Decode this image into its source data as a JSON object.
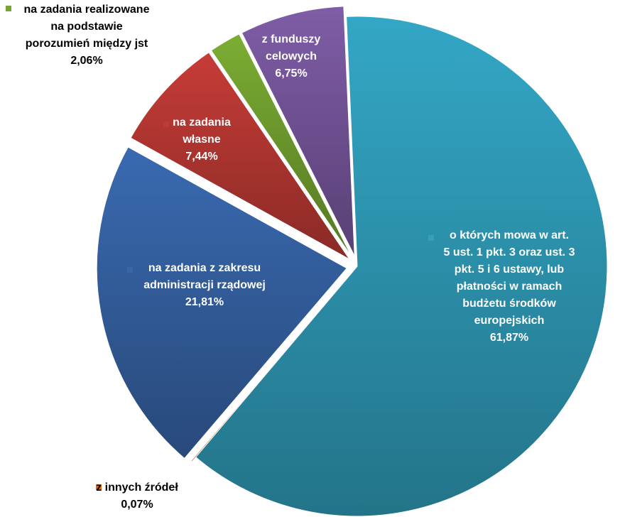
{
  "chart_data": {
    "type": "pie",
    "title": "",
    "slices": [
      {
        "name": "o których mowa w art. 5 ust. 1 pkt. 3 oraz ust. 3 pkt. 5 i 6 ustawy, lub płatności w ramach budżetu środków europejskich",
        "label_lines": [
          "o których mowa w art.",
          "5 ust. 1 pkt. 3 oraz ust. 3",
          "pkt. 5 i 6 ustawy, lub",
          "płatności w ramach",
          "budżetu środków",
          "europejskich"
        ],
        "value": 61.87,
        "value_label": "61,87%",
        "color": "#31A1BE"
      },
      {
        "name": "z innych źródeł",
        "label_lines": [
          "z innych źródeł"
        ],
        "value": 0.07,
        "value_label": "0,07%",
        "color": "#E36C0A"
      },
      {
        "name": "na zadania z zakresu administracji rządowej",
        "label_lines": [
          "na zadania z zakresu",
          "administracji rządowej"
        ],
        "value": 21.81,
        "value_label": "21,81%",
        "color": "#3766A9"
      },
      {
        "name": "na zadania własne",
        "label_lines": [
          "na zadania",
          "własne"
        ],
        "value": 7.44,
        "value_label": "7,44%",
        "color": "#BF3A35"
      },
      {
        "name": "na zadania realizowane na podstawie porozumień między jst",
        "label_lines": [
          "na zadania realizowane",
          "na podstawie",
          "porozumień  między jst"
        ],
        "value": 2.06,
        "value_label": "2,06%",
        "color": "#76A631"
      },
      {
        "name": "z funduszy celowych",
        "label_lines": [
          "z funduszy",
          "celowych"
        ],
        "value": 6.75,
        "value_label": "6,75%",
        "color": "#7A59A1"
      }
    ]
  }
}
